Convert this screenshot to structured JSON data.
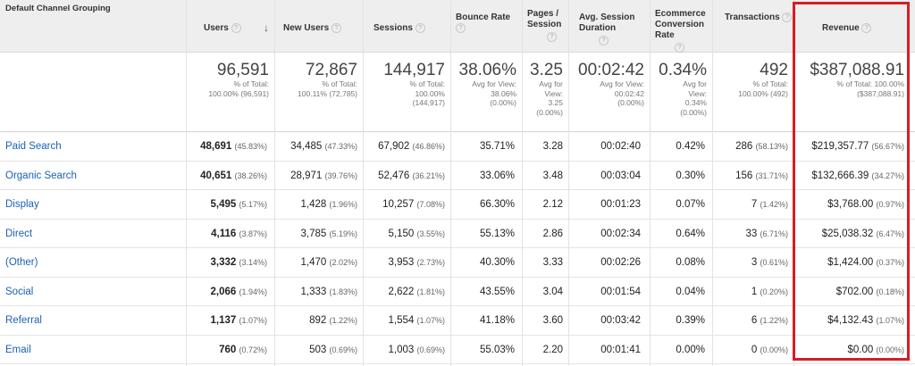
{
  "table": {
    "dimension_header": "Default Channel Grouping",
    "columns": [
      {
        "key": "users",
        "label_lines": [
          "Users"
        ],
        "sorted": true
      },
      {
        "key": "new_users",
        "label_lines": [
          "New Users"
        ]
      },
      {
        "key": "sessions",
        "label_lines": [
          "Sessions"
        ]
      },
      {
        "key": "bounce_rate",
        "label_lines": [
          "Bounce Rate"
        ]
      },
      {
        "key": "pages_session",
        "label_lines": [
          "Pages /",
          "Session"
        ]
      },
      {
        "key": "avg_duration",
        "label_lines": [
          "Avg. Session",
          "Duration"
        ]
      },
      {
        "key": "ecomm_rate",
        "label_lines": [
          "Ecommerce",
          "Conversion",
          "Rate"
        ]
      },
      {
        "key": "transactions",
        "label_lines": [
          "Transactions"
        ]
      },
      {
        "key": "revenue",
        "label_lines": [
          "Revenue"
        ]
      }
    ],
    "help_icon_char": "?",
    "sort_icon_char": "↓",
    "totals": [
      {
        "big": "96,591",
        "sub": [
          "% of Total:",
          "100.00% (96,591)"
        ]
      },
      {
        "big": "72,867",
        "sub": [
          "% of Total:",
          "100.11% (72,785)"
        ]
      },
      {
        "big": "144,917",
        "sub": [
          "% of Total:",
          "100.00%",
          "(144,917)"
        ]
      },
      {
        "big": "38.06%",
        "sub": [
          "Avg for View:",
          "38.06%",
          "(0.00%)"
        ]
      },
      {
        "big": "3.25",
        "sub": [
          "Avg for",
          "View:",
          "3.25",
          "(0.00%)"
        ]
      },
      {
        "big": "00:02:42",
        "sub": [
          "Avg for View:",
          "00:02:42",
          "(0.00%)"
        ]
      },
      {
        "big": "0.34%",
        "sub": [
          "Avg for",
          "View:",
          "0.34%",
          "(0.00%)"
        ]
      },
      {
        "big": "492",
        "sub": [
          "% of Total:",
          "100.00% (492)"
        ]
      },
      {
        "big": "$387,088.91",
        "sub": [
          "% of Total: 100.00%",
          "($387,088.91)"
        ]
      }
    ],
    "rows": [
      {
        "name": "Paid Search",
        "users": "48,691",
        "users_pct": "(45.83%)",
        "new_users": "34,485",
        "new_users_pct": "(47.33%)",
        "sessions": "67,902",
        "sessions_pct": "(46.86%)",
        "bounce_rate": "35.71%",
        "pages_session": "3.28",
        "avg_duration": "00:02:40",
        "ecomm_rate": "0.42%",
        "transactions": "286",
        "transactions_pct": "(58.13%)",
        "revenue": "$219,357.77",
        "revenue_pct": "(56.67%)"
      },
      {
        "name": "Organic Search",
        "users": "40,651",
        "users_pct": "(38.26%)",
        "new_users": "28,971",
        "new_users_pct": "(39.76%)",
        "sessions": "52,476",
        "sessions_pct": "(36.21%)",
        "bounce_rate": "33.06%",
        "pages_session": "3.48",
        "avg_duration": "00:03:04",
        "ecomm_rate": "0.30%",
        "transactions": "156",
        "transactions_pct": "(31.71%)",
        "revenue": "$132,666.39",
        "revenue_pct": "(34.27%)"
      },
      {
        "name": "Display",
        "users": "5,495",
        "users_pct": "(5.17%)",
        "new_users": "1,428",
        "new_users_pct": "(1.96%)",
        "sessions": "10,257",
        "sessions_pct": "(7.08%)",
        "bounce_rate": "66.30%",
        "pages_session": "2.12",
        "avg_duration": "00:01:23",
        "ecomm_rate": "0.07%",
        "transactions": "7",
        "transactions_pct": "(1.42%)",
        "revenue": "$3,768.00",
        "revenue_pct": "(0.97%)"
      },
      {
        "name": "Direct",
        "users": "4,116",
        "users_pct": "(3.87%)",
        "new_users": "3,785",
        "new_users_pct": "(5.19%)",
        "sessions": "5,150",
        "sessions_pct": "(3.55%)",
        "bounce_rate": "55.13%",
        "pages_session": "2.86",
        "avg_duration": "00:02:34",
        "ecomm_rate": "0.64%",
        "transactions": "33",
        "transactions_pct": "(6.71%)",
        "revenue": "$25,038.32",
        "revenue_pct": "(6.47%)"
      },
      {
        "name": "(Other)",
        "users": "3,332",
        "users_pct": "(3.14%)",
        "new_users": "1,470",
        "new_users_pct": "(2.02%)",
        "sessions": "3,953",
        "sessions_pct": "(2.73%)",
        "bounce_rate": "40.30%",
        "pages_session": "3.33",
        "avg_duration": "00:02:26",
        "ecomm_rate": "0.08%",
        "transactions": "3",
        "transactions_pct": "(0.61%)",
        "revenue": "$1,424.00",
        "revenue_pct": "(0.37%)"
      },
      {
        "name": "Social",
        "users": "2,066",
        "users_pct": "(1.94%)",
        "new_users": "1,333",
        "new_users_pct": "(1.83%)",
        "sessions": "2,622",
        "sessions_pct": "(1.81%)",
        "bounce_rate": "43.55%",
        "pages_session": "3.04",
        "avg_duration": "00:01:54",
        "ecomm_rate": "0.04%",
        "transactions": "1",
        "transactions_pct": "(0.20%)",
        "revenue": "$702.00",
        "revenue_pct": "(0.18%)"
      },
      {
        "name": "Referral",
        "users": "1,137",
        "users_pct": "(1.07%)",
        "new_users": "892",
        "new_users_pct": "(1.22%)",
        "sessions": "1,554",
        "sessions_pct": "(1.07%)",
        "bounce_rate": "41.18%",
        "pages_session": "3.60",
        "avg_duration": "00:03:42",
        "ecomm_rate": "0.39%",
        "transactions": "6",
        "transactions_pct": "(1.22%)",
        "revenue": "$4,132.43",
        "revenue_pct": "(1.07%)"
      },
      {
        "name": "Email",
        "users": "760",
        "users_pct": "(0.72%)",
        "new_users": "503",
        "new_users_pct": "(0.69%)",
        "sessions": "1,003",
        "sessions_pct": "(0.69%)",
        "bounce_rate": "55.03%",
        "pages_session": "2.20",
        "avg_duration": "00:01:41",
        "ecomm_rate": "0.00%",
        "transactions": "0",
        "transactions_pct": "(0.00%)",
        "revenue": "$0.00",
        "revenue_pct": "(0.00%)"
      }
    ]
  },
  "colors": {
    "link": "#1a62b3",
    "highlight_border": "#d51e26",
    "header_bg": "#eeeeee"
  }
}
